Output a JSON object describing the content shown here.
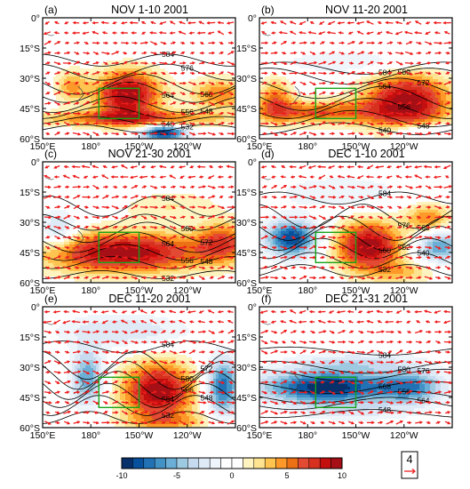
{
  "panels": [
    {
      "label": "(a)",
      "title": "NOV 1-10 2001",
      "blobs": [
        {
          "lon": 203,
          "lat": -38,
          "rlon": 20,
          "rlat": 12,
          "v": 10
        },
        {
          "lon": 168,
          "lat": -34,
          "rlon": 10,
          "rlat": 8,
          "v": 4
        },
        {
          "lon": 260,
          "lat": -38,
          "rlon": 18,
          "rlat": 8,
          "v": 5
        },
        {
          "lon": 205,
          "lat": -50,
          "rlon": 60,
          "rlat": 4,
          "v": 6
        },
        {
          "lon": 225,
          "lat": -57,
          "rlon": 14,
          "rlat": 4,
          "v": -10
        },
        {
          "lon": 200,
          "lat": -10,
          "rlon": 60,
          "rlat": 8,
          "v": -1
        }
      ],
      "contours": [
        {
          "value": "584",
          "lat": -21,
          "amp": 3,
          "k": 1.5,
          "ph": 0.3
        },
        {
          "value": "576",
          "lat": -27,
          "amp": 4,
          "k": 1.5,
          "ph": 0.3
        },
        {
          "value": "568",
          "lat": -33,
          "amp": 5,
          "k": 1.5,
          "ph": 0.5
        },
        {
          "value": "564",
          "lat": -37,
          "amp": 5,
          "k": 1.5,
          "ph": 0.6
        },
        {
          "value": "556",
          "lat": -43,
          "amp": 4,
          "k": 1.5,
          "ph": 0.7
        },
        {
          "value": "548",
          "lat": -47,
          "amp": 3,
          "k": 1.5,
          "ph": 0.8
        },
        {
          "value": "540",
          "lat": -51,
          "amp": 2,
          "k": 1.5,
          "ph": 0.9
        },
        {
          "value": "532",
          "lat": -55,
          "amp": 2,
          "k": 1.5,
          "ph": 1.0
        }
      ]
    },
    {
      "label": "(b)",
      "title": "NOV 11-20 2001",
      "blobs": [
        {
          "lon": 242,
          "lat": -42,
          "rlon": 26,
          "rlat": 14,
          "v": 10
        },
        {
          "lon": 185,
          "lat": -47,
          "rlon": 40,
          "rlat": 6,
          "v": 6
        },
        {
          "lon": 160,
          "lat": -40,
          "rlon": 10,
          "rlat": 10,
          "v": 5
        },
        {
          "lon": 250,
          "lat": -56,
          "rlon": 20,
          "rlat": 4,
          "v": -4
        },
        {
          "lon": 210,
          "lat": -22,
          "rlon": 50,
          "rlat": 6,
          "v": -2
        }
      ],
      "contours": [
        {
          "value": "584",
          "lat": -25,
          "amp": 3,
          "k": 1.2,
          "ph": 0.1
        },
        {
          "value": "580",
          "lat": -29,
          "amp": 4,
          "k": 1.2,
          "ph": 0.2
        },
        {
          "value": "572",
          "lat": -35,
          "amp": 5,
          "k": 1.2,
          "ph": 0.4
        },
        {
          "value": "564",
          "lat": -40,
          "amp": 6,
          "k": 1.2,
          "ph": 0.5
        },
        {
          "value": "556",
          "lat": -45,
          "amp": 5,
          "k": 1.2,
          "ph": 0.6
        },
        {
          "value": "548",
          "lat": -50,
          "amp": 4,
          "k": 1.2,
          "ph": 0.7
        },
        {
          "value": "540",
          "lat": -55,
          "amp": 3,
          "k": 1.2,
          "ph": 0.8
        }
      ]
    },
    {
      "label": "(c)",
      "title": "NOV 21-30 2001",
      "blobs": [
        {
          "lon": 200,
          "lat": -45,
          "rlon": 50,
          "rlat": 10,
          "v": 10
        },
        {
          "lon": 262,
          "lat": -40,
          "rlon": 16,
          "rlat": 10,
          "v": 6
        },
        {
          "lon": 160,
          "lat": -35,
          "rlon": 12,
          "rlat": 10,
          "v": -4
        },
        {
          "lon": 230,
          "lat": -22,
          "rlon": 30,
          "rlat": 8,
          "v": 2
        },
        {
          "lon": 190,
          "lat": -8,
          "rlon": 40,
          "rlat": 6,
          "v": -1
        }
      ],
      "contours": [
        {
          "value": "584",
          "lat": -22,
          "amp": 5,
          "k": 1.8,
          "ph": 0.2
        },
        {
          "value": "580",
          "lat": -30,
          "amp": 4,
          "k": 1.8,
          "ph": 0.3
        },
        {
          "value": "572",
          "lat": -35,
          "amp": 5,
          "k": 1.6,
          "ph": 0.4
        },
        {
          "value": "564",
          "lat": -40,
          "amp": 5,
          "k": 1.6,
          "ph": 0.5
        },
        {
          "value": "556",
          "lat": -45,
          "amp": 4,
          "k": 1.6,
          "ph": 0.6
        },
        {
          "value": "548",
          "lat": -50,
          "amp": 3,
          "k": 1.6,
          "ph": 0.7
        },
        {
          "value": "532",
          "lat": -56,
          "amp": 2,
          "k": 1.6,
          "ph": 0.8
        }
      ]
    },
    {
      "label": "(d)",
      "title": "DEC 1-10 2001",
      "blobs": [
        {
          "lon": 218,
          "lat": -42,
          "rlon": 20,
          "rlat": 12,
          "v": 10
        },
        {
          "lon": 170,
          "lat": -38,
          "rlon": 16,
          "rlat": 9,
          "v": -9
        },
        {
          "lon": 262,
          "lat": -42,
          "rlon": 14,
          "rlat": 8,
          "v": -6
        },
        {
          "lon": 255,
          "lat": -28,
          "rlon": 14,
          "rlat": 7,
          "v": 5
        },
        {
          "lon": 240,
          "lat": -55,
          "rlon": 20,
          "rlat": 5,
          "v": 3
        },
        {
          "lon": 200,
          "lat": -15,
          "rlon": 40,
          "rlat": 8,
          "v": -2
        }
      ],
      "contours": [
        {
          "value": "584",
          "lat": -18,
          "amp": 3,
          "k": 1.6,
          "ph": 0.1
        },
        {
          "value": "576",
          "lat": -27,
          "amp": 6,
          "k": 1.8,
          "ph": 0.3
        },
        {
          "value": "568",
          "lat": -33,
          "amp": 6,
          "k": 1.8,
          "ph": 0.5
        },
        {
          "value": "560",
          "lat": -38,
          "amp": 6,
          "k": 1.8,
          "ph": 0.6
        },
        {
          "value": "552",
          "lat": -43,
          "amp": 5,
          "k": 1.8,
          "ph": 0.7
        },
        {
          "value": "540",
          "lat": -49,
          "amp": 4,
          "k": 1.8,
          "ph": 0.8
        },
        {
          "value": "532",
          "lat": -54,
          "amp": 3,
          "k": 1.8,
          "ph": 0.9
        }
      ]
    },
    {
      "label": "(e)",
      "title": "DEC 11-20 2001",
      "blobs": [
        {
          "lon": 222,
          "lat": -42,
          "rlon": 22,
          "rlat": 14,
          "v": 10
        },
        {
          "lon": 178,
          "lat": -35,
          "rlon": 10,
          "rlat": 14,
          "v": -6
        },
        {
          "lon": 262,
          "lat": -40,
          "rlon": 10,
          "rlat": 14,
          "v": -8
        },
        {
          "lon": 230,
          "lat": -57,
          "rlon": 30,
          "rlat": 4,
          "v": 3
        },
        {
          "lon": 200,
          "lat": -12,
          "rlon": 40,
          "rlat": 8,
          "v": -3
        }
      ],
      "contours": [
        {
          "value": "584",
          "lat": -20,
          "amp": 3,
          "k": 1.5,
          "ph": 0.1
        },
        {
          "value": "580",
          "lat": -29,
          "amp": 7,
          "k": 2.0,
          "ph": 0.3
        },
        {
          "value": "572",
          "lat": -34,
          "amp": 7,
          "k": 2.0,
          "ph": 0.4
        },
        {
          "value": "564",
          "lat": -39,
          "amp": 7,
          "k": 2.0,
          "ph": 0.5
        },
        {
          "value": "556",
          "lat": -44,
          "amp": 6,
          "k": 2.0,
          "ph": 0.6
        },
        {
          "value": "548",
          "lat": -49,
          "amp": 5,
          "k": 2.0,
          "ph": 0.7
        },
        {
          "value": "532",
          "lat": -55,
          "amp": 3,
          "k": 2.0,
          "ph": 0.8
        }
      ]
    },
    {
      "label": "(f)",
      "title": "DEC 21-31 2001",
      "blobs": [
        {
          "lon": 192,
          "lat": -40,
          "rlon": 40,
          "rlat": 8,
          "v": -10
        },
        {
          "lon": 245,
          "lat": -40,
          "rlon": 20,
          "rlat": 8,
          "v": -6
        },
        {
          "lon": 210,
          "lat": -28,
          "rlon": 40,
          "rlat": 5,
          "v": -3
        },
        {
          "lon": 210,
          "lat": -52,
          "rlon": 40,
          "rlat": 5,
          "v": -2
        }
      ],
      "contours": [
        {
          "value": "584",
          "lat": -22,
          "amp": 2,
          "k": 1.0,
          "ph": 0.1
        },
        {
          "value": "580",
          "lat": -30,
          "amp": 3,
          "k": 1.0,
          "ph": 0.2
        },
        {
          "value": "576",
          "lat": -34,
          "amp": 3,
          "k": 1.0,
          "ph": 0.3
        },
        {
          "value": "568",
          "lat": -40,
          "amp": 3,
          "k": 1.0,
          "ph": 0.4
        },
        {
          "value": "556",
          "lat": -45,
          "amp": 3,
          "k": 1.0,
          "ph": 0.5
        },
        {
          "value": "564",
          "lat": -48,
          "amp": 3,
          "k": 1.0,
          "ph": 0.6
        },
        {
          "value": "548",
          "lat": -53,
          "amp": 2,
          "k": 1.0,
          "ph": 0.7
        }
      ]
    }
  ],
  "x_ticks": [
    "150°E",
    "180°",
    "150°W",
    "120°W"
  ],
  "x_tick_lons": [
    150,
    180,
    210,
    240
  ],
  "y_ticks": [
    "0°",
    "15°S",
    "30°S",
    "45°S",
    "60°S"
  ],
  "y_tick_lats": [
    0,
    -15,
    -30,
    -45,
    -60
  ],
  "lon_range": [
    150,
    270
  ],
  "lat_range": [
    -60,
    0
  ],
  "box": {
    "lon": [
      185,
      210
    ],
    "lat": [
      -50,
      -35
    ]
  },
  "colorbar": {
    "colors": [
      "#08306b",
      "#08519c",
      "#2171b5",
      "#4292c6",
      "#6baed6",
      "#9ecae1",
      "#c6dbef",
      "#deebf7",
      "#eef5fb",
      "#ffffff",
      "#ffffff",
      "#fff3c0",
      "#fee391",
      "#fec44f",
      "#fe9929",
      "#ec7014",
      "#e34a33",
      "#d7301f",
      "#c40f0f",
      "#a50f15"
    ],
    "tick_labels": [
      "-10",
      "-5",
      "0",
      "5",
      "10"
    ],
    "tick_values": [
      -10,
      -5,
      0,
      5,
      10
    ]
  },
  "vector_key": {
    "label": "4"
  },
  "colors": {
    "wind": "#ee1c1c",
    "box": "#19a319",
    "contour": "#000000"
  }
}
